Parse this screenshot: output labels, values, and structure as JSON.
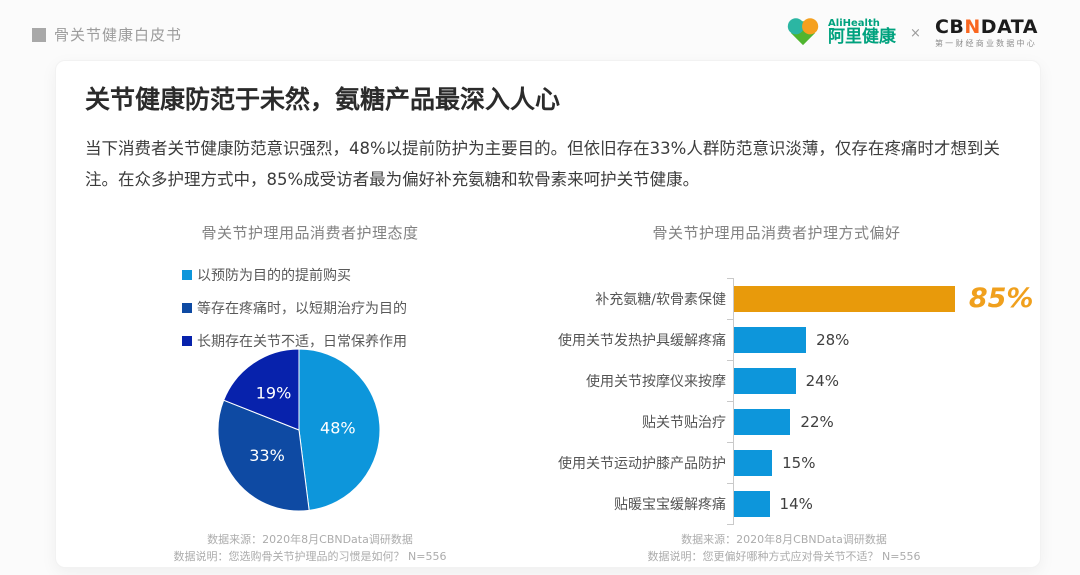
{
  "header": {
    "breadcrumb": "骨关节健康白皮书",
    "alihealth": {
      "name_en": "AliHealth",
      "name_cn": "阿里健康"
    },
    "separator": "×",
    "cbndata": {
      "part_cb": "CB",
      "part_n": "N",
      "part_data": "DATA",
      "subtitle": "第一财经商业数据中心"
    }
  },
  "main": {
    "title": "关节健康防范于未然，氨糖产品最深入人心",
    "body": "当下消费者关节健康防范意识强烈，48%以提前防护为主要目的。但依旧存在33%人群防范意识淡薄，仅存在疼痛时才想到关注。在众多护理方式中，85%成受访者最为偏好补充氨糖和软骨素来呵护关节健康。"
  },
  "chart_data": [
    {
      "type": "pie",
      "title": "骨关节护理用品消费者护理态度",
      "labels": [
        "以预防为目的的提前购买",
        "等存在疼痛时，以短期治疗为目的",
        "长期存在关节不适，日常保养作用"
      ],
      "values": [
        48,
        33,
        19
      ],
      "value_labels": [
        "48%",
        "33%",
        "19%"
      ],
      "colors": [
        "#0D96DB",
        "#0E4AA3",
        "#0722AC"
      ],
      "start_angle_deg": 0,
      "direction": "clockwise",
      "legend_position": "top-left",
      "source_line1": "数据来源：2020年8月CBNData调研数据",
      "source_line2": "数据说明：您选购骨关节护理品的习惯是如何？ N=556"
    },
    {
      "type": "bar",
      "orientation": "horizontal",
      "title": "骨关节护理用品消费者护理方式偏好",
      "categories": [
        "补充氨糖/软骨素保健",
        "使用关节发热护具缓解疼痛",
        "使用关节按摩仪来按摩",
        "贴关节贴治疗",
        "使用关节运动护膝产品防护",
        "贴暖宝宝缓解疼痛"
      ],
      "values": [
        85,
        28,
        24,
        22,
        15,
        14
      ],
      "value_labels": [
        "85%",
        "28%",
        "24%",
        "22%",
        "15%",
        "14%"
      ],
      "bar_colors": [
        "#E89A0B",
        "#0D96DB",
        "#0D96DB",
        "#0D96DB",
        "#0D96DB",
        "#0D96DB"
      ],
      "highlight_index": 0,
      "xlim": [
        0,
        100
      ],
      "grid": false,
      "source_line1": "数据来源：2020年8月CBNData调研数据",
      "source_line2": "数据说明：您更偏好哪种方式应对骨关节不适？ N=556"
    }
  ],
  "theme": {
    "accent_blue": "#0D96DB",
    "accent_orange": "#E89A0B",
    "highlight_label_color": "#F0A01D",
    "ali_green": "#00A27E",
    "cbn_orange": "#F9661F"
  }
}
